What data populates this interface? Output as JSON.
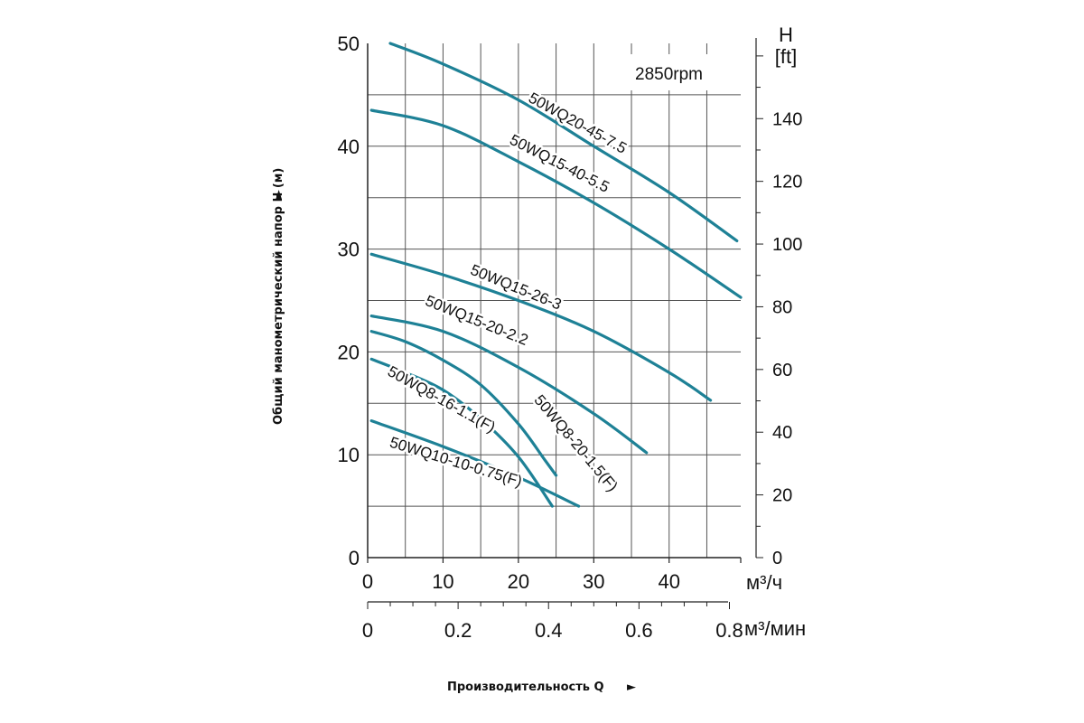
{
  "chart_data": {
    "type": "line",
    "speed_label": "2850rpm",
    "y_axis": {
      "label": "Общий манометрический напор H (м)",
      "ticks": [
        "0",
        "10",
        "20",
        "30",
        "40",
        "50"
      ],
      "range": [
        0,
        50
      ]
    },
    "y2_axis": {
      "label": "H",
      "unit": "[ft]",
      "ticks": [
        "0",
        "20",
        "40",
        "60",
        "80",
        "100",
        "120",
        "140"
      ],
      "range": [
        0,
        164
      ]
    },
    "x_axis": {
      "unit": "м³/ч",
      "ticks": [
        "0",
        "10",
        "20",
        "30",
        "40"
      ],
      "range": [
        0,
        49.5
      ]
    },
    "x2_axis": {
      "unit": "м³/мин",
      "ticks": [
        "0",
        "0.2",
        "0.4",
        "0.6",
        "0.8"
      ],
      "range": [
        0,
        0.825
      ]
    },
    "x_title": "Производительность Q",
    "arrow": "►",
    "grid": true,
    "series": [
      {
        "name": "50WQ20-45-7.5",
        "x": [
          3,
          10,
          20,
          30,
          40,
          49
        ],
        "y": [
          50,
          48,
          44.5,
          40,
          35.5,
          30.8
        ]
      },
      {
        "name": "50WQ15-40-5.5",
        "x": [
          0.5,
          10,
          20,
          30,
          40,
          49.5
        ],
        "y": [
          43.5,
          42,
          38.5,
          34.5,
          30,
          25.3
        ]
      },
      {
        "name": "50WQ15-26-3",
        "x": [
          0.5,
          10,
          20,
          30,
          40,
          45.5
        ],
        "y": [
          29.5,
          27.5,
          25,
          22,
          18,
          15.3
        ]
      },
      {
        "name": "50WQ15-20-2.2",
        "x": [
          0.5,
          10,
          20,
          30,
          37
        ],
        "y": [
          23.5,
          22,
          18.5,
          14,
          10.2
        ]
      },
      {
        "name": "50WQ8-20-1.5(F)",
        "x": [
          0.5,
          5,
          10,
          15,
          20,
          23.5,
          25
        ],
        "y": [
          22,
          21,
          19.2,
          16.8,
          13,
          9.5,
          8
        ]
      },
      {
        "name": "50WQ8-16-1.1(F)",
        "x": [
          0.5,
          5,
          10,
          15,
          20,
          24.5
        ],
        "y": [
          19.3,
          18,
          16.3,
          13.5,
          9.8,
          5
        ]
      },
      {
        "name": "50WQ10-10-0.75(F)",
        "x": [
          0.5,
          10,
          20,
          28
        ],
        "y": [
          13.3,
          10.8,
          7.8,
          5
        ]
      }
    ]
  }
}
